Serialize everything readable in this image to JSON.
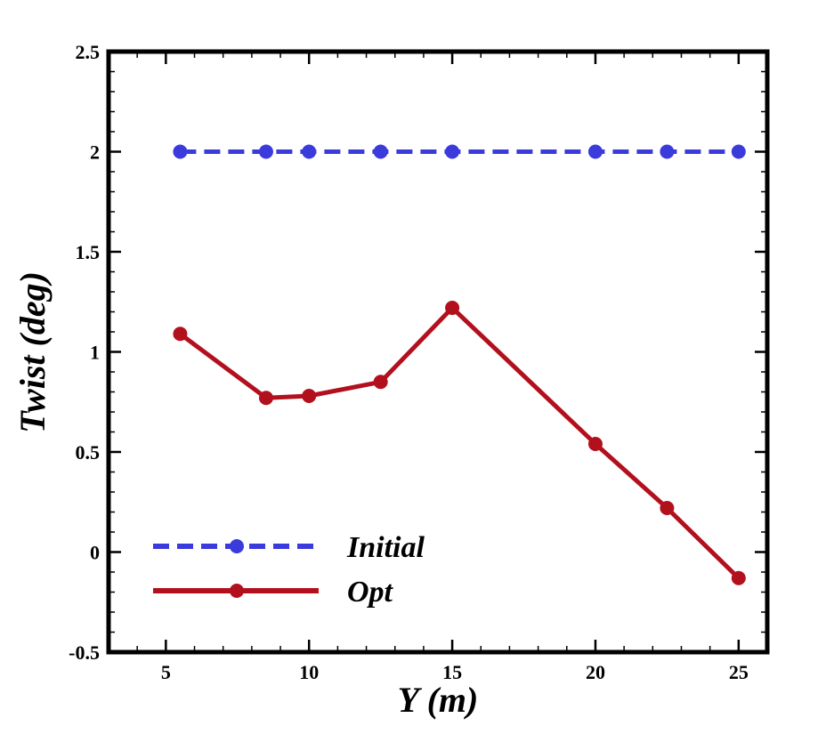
{
  "chart_data": {
    "type": "line",
    "title": "",
    "xlabel": "Y (m)",
    "ylabel": "Twist (deg)",
    "xlim": [
      3,
      26
    ],
    "ylim": [
      -0.5,
      2.5
    ],
    "xticks": [
      "5",
      "10",
      "15",
      "20",
      "25"
    ],
    "yticks": [
      "-0.5",
      "0",
      "0.5",
      "1",
      "1.5",
      "2",
      "2.5"
    ],
    "grid": false,
    "legend_position": "bottom-left",
    "series": [
      {
        "name": "Initial",
        "color": "#3b3bdb",
        "line_style": "dashed",
        "marker": "circle",
        "x": [
          5.5,
          8.5,
          10,
          12.5,
          15,
          20,
          22.5,
          25
        ],
        "y": [
          2.0,
          2.0,
          2.0,
          2.0,
          2.0,
          2.0,
          2.0,
          2.0
        ]
      },
      {
        "name": "Opt",
        "color": "#b3101e",
        "line_style": "solid",
        "marker": "circle",
        "x": [
          5.5,
          8.5,
          10,
          12.5,
          15,
          20,
          22.5,
          25
        ],
        "y": [
          1.09,
          0.77,
          0.78,
          0.85,
          1.22,
          0.54,
          0.22,
          -0.13
        ]
      }
    ]
  }
}
